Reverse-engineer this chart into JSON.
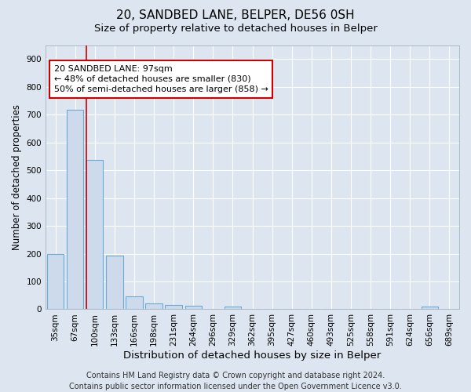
{
  "title": "20, SANDBED LANE, BELPER, DE56 0SH",
  "subtitle": "Size of property relative to detached houses in Belper",
  "xlabel": "Distribution of detached houses by size in Belper",
  "ylabel": "Number of detached properties",
  "bar_labels": [
    "35sqm",
    "67sqm",
    "100sqm",
    "133sqm",
    "166sqm",
    "198sqm",
    "231sqm",
    "264sqm",
    "296sqm",
    "329sqm",
    "362sqm",
    "395sqm",
    "427sqm",
    "460sqm",
    "493sqm",
    "525sqm",
    "558sqm",
    "591sqm",
    "624sqm",
    "656sqm",
    "689sqm"
  ],
  "bar_values": [
    200,
    717,
    538,
    192,
    46,
    20,
    14,
    12,
    0,
    9,
    0,
    0,
    0,
    0,
    0,
    0,
    0,
    0,
    0,
    9,
    0
  ],
  "bar_color": "#ccdaeb",
  "bar_edge_color": "#6aaad4",
  "background_color": "#dde6f0",
  "grid_color": "#ffffff",
  "annotation_line1": "20 SANDBED LANE: 97sqm",
  "annotation_line2": "← 48% of detached houses are smaller (830)",
  "annotation_line3": "50% of semi-detached houses are larger (858) →",
  "red_line_bar_index": 2,
  "ylim": [
    0,
    950
  ],
  "yticks": [
    0,
    100,
    200,
    300,
    400,
    500,
    600,
    700,
    800,
    900
  ],
  "footer": "Contains HM Land Registry data © Crown copyright and database right 2024.\nContains public sector information licensed under the Open Government Licence v3.0.",
  "footer_fontsize": 7,
  "title_fontsize": 11,
  "subtitle_fontsize": 9.5,
  "xlabel_fontsize": 9.5,
  "ylabel_fontsize": 8.5,
  "tick_fontsize": 7.5,
  "ann_fontsize": 8
}
